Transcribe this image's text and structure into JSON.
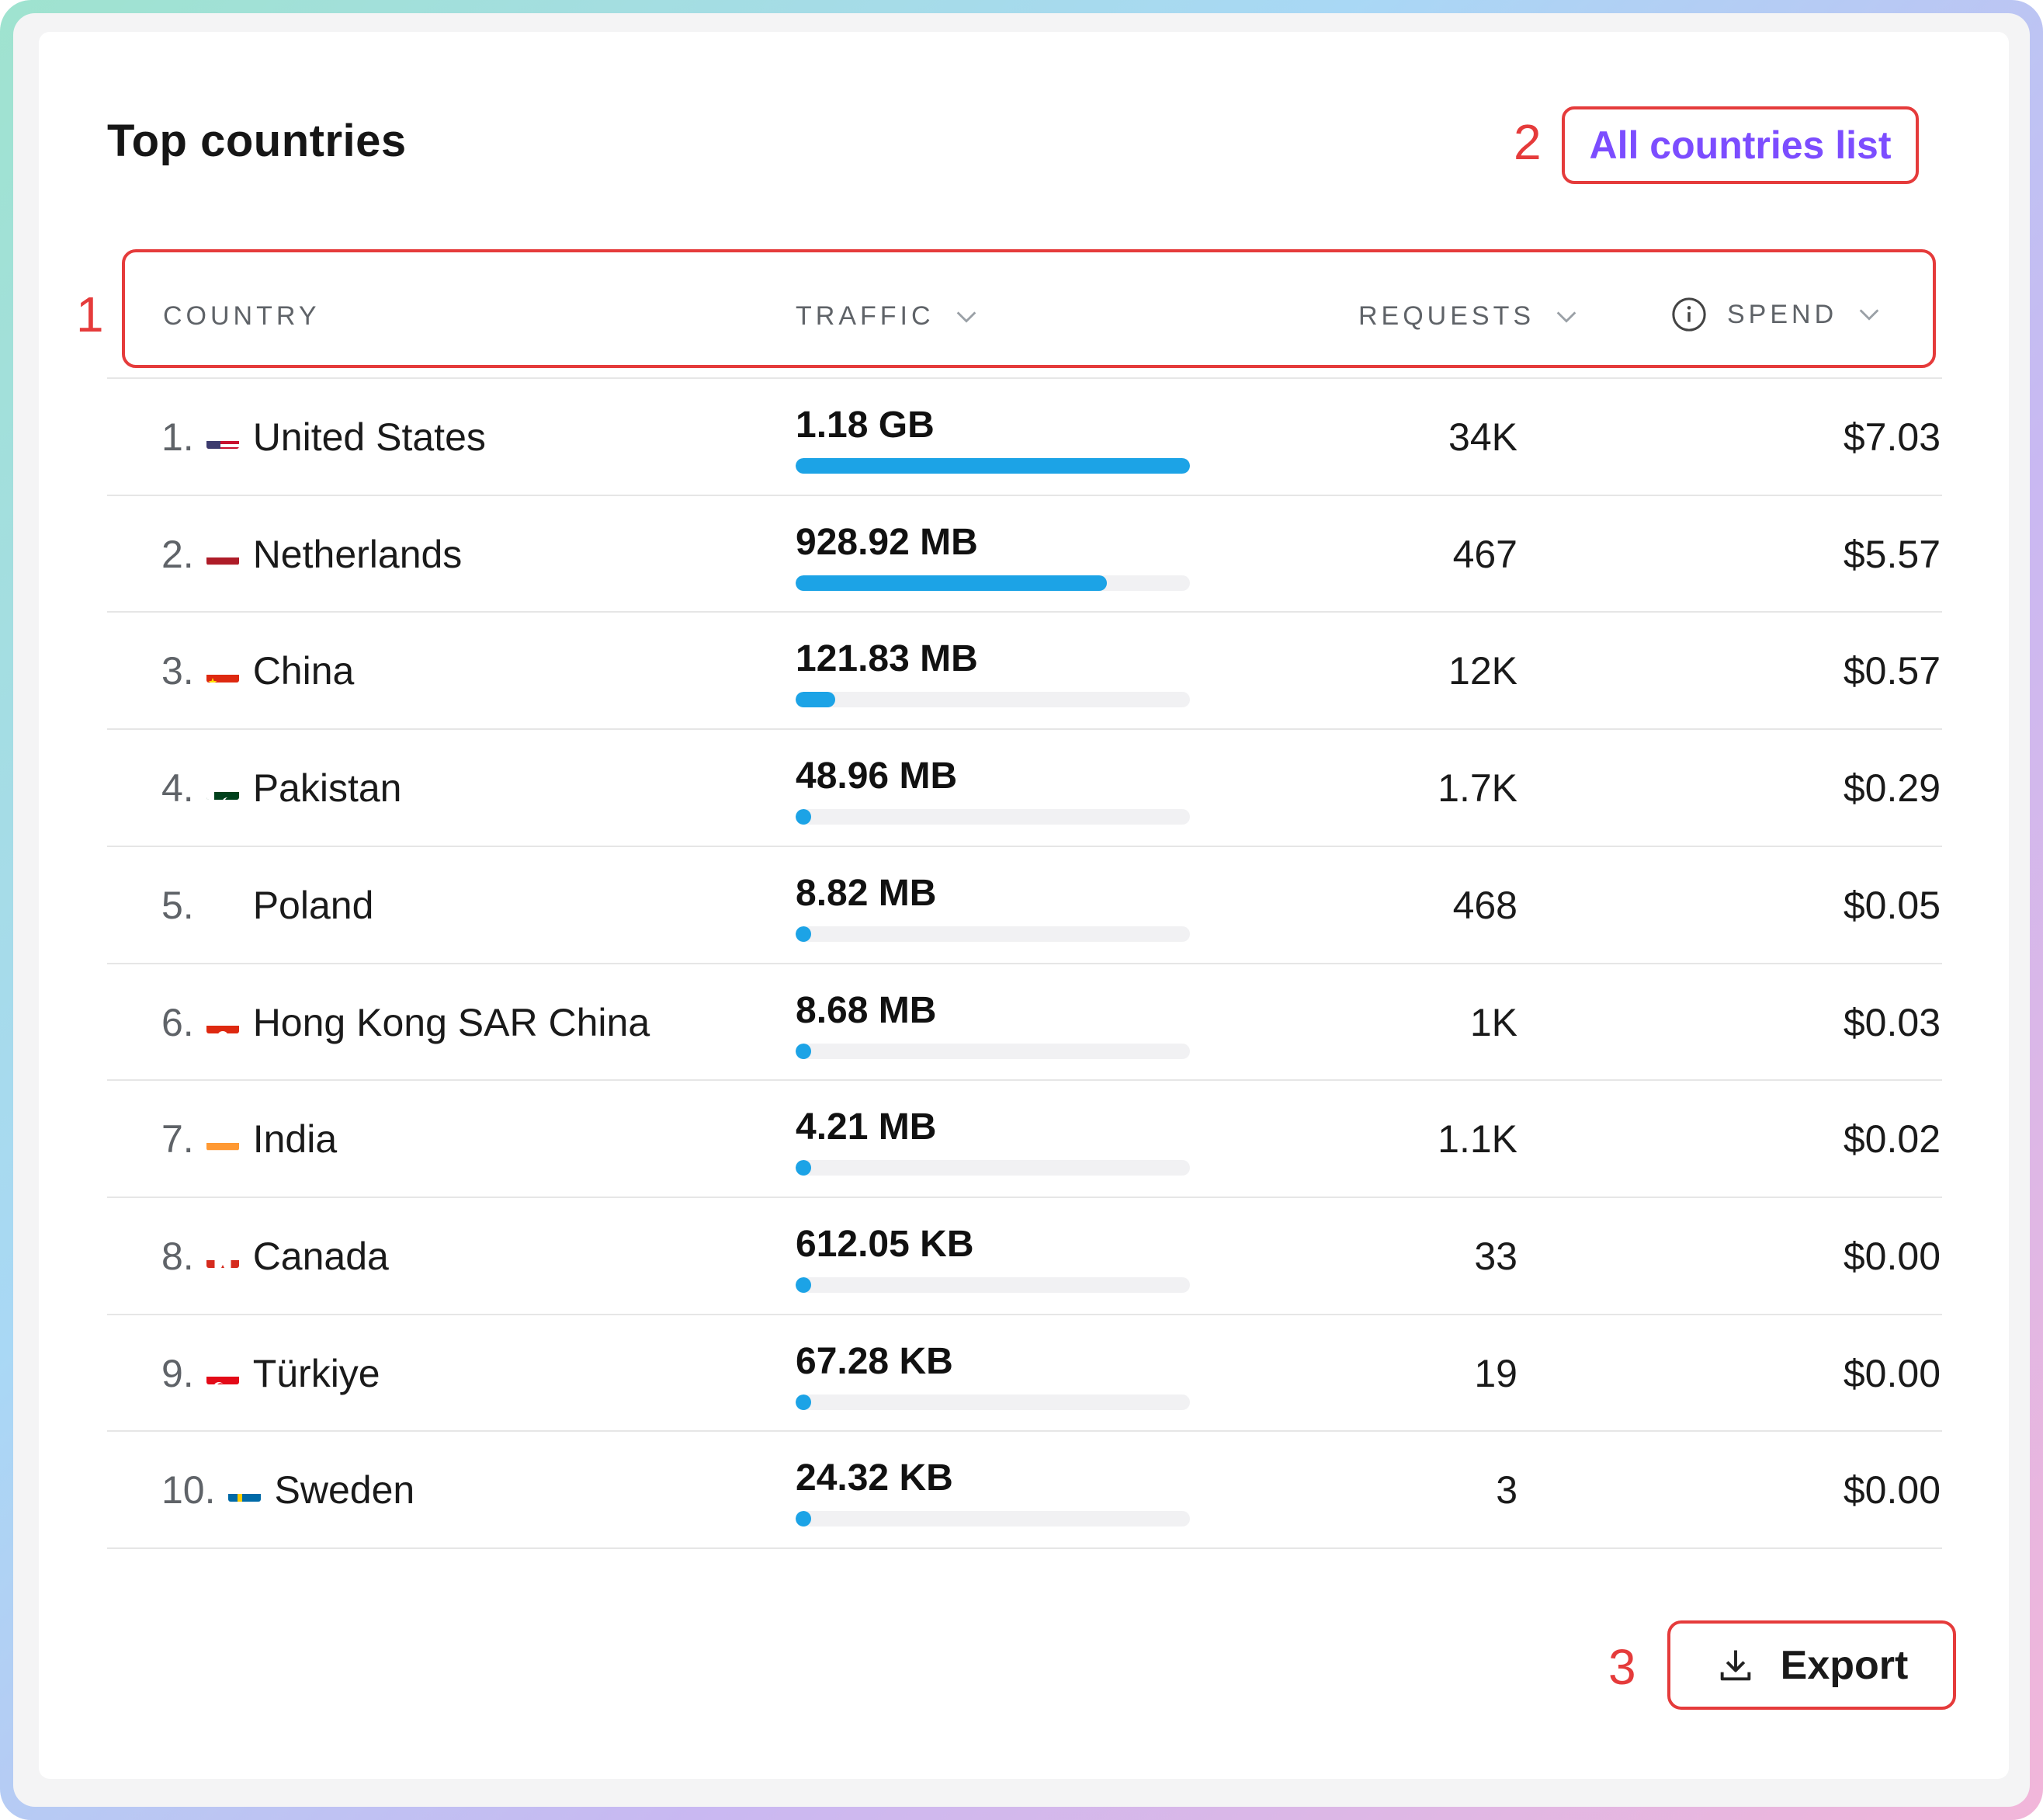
{
  "card": {
    "title": "Top countries",
    "all_countries_label": "All countries list",
    "export_label": "Export"
  },
  "annotations": [
    "1",
    "2",
    "3"
  ],
  "columns": {
    "country": "COUNTRY",
    "traffic": "TRAFFIC",
    "requests": "REQUESTS",
    "spend": "SPEND"
  },
  "rows": [
    {
      "rank": "1.",
      "country": "United States",
      "flag": "flag-us-icon",
      "traffic": "1.18 GB",
      "traffic_fraction": 1.0,
      "requests": "34K",
      "spend": "$7.03"
    },
    {
      "rank": "2.",
      "country": "Netherlands",
      "flag": "flag-nl-icon",
      "traffic": "928.92 MB",
      "traffic_fraction": 0.79,
      "requests": "467",
      "spend": "$5.57"
    },
    {
      "rank": "3.",
      "country": "China",
      "flag": "flag-cn-icon",
      "traffic": "121.83 MB",
      "traffic_fraction": 0.1,
      "requests": "12K",
      "spend": "$0.57"
    },
    {
      "rank": "4.",
      "country": "Pakistan",
      "flag": "flag-pk-icon",
      "traffic": "48.96 MB",
      "traffic_fraction": 0.04,
      "requests": "1.7K",
      "spend": "$0.29"
    },
    {
      "rank": "5.",
      "country": "Poland",
      "flag": "flag-pl-icon",
      "traffic": "8.82 MB",
      "traffic_fraction": 0.01,
      "requests": "468",
      "spend": "$0.05"
    },
    {
      "rank": "6.",
      "country": "Hong Kong SAR China",
      "flag": "flag-hk-icon",
      "traffic": "8.68 MB",
      "traffic_fraction": 0.01,
      "requests": "1K",
      "spend": "$0.03"
    },
    {
      "rank": "7.",
      "country": "India",
      "flag": "flag-in-icon",
      "traffic": "4.21 MB",
      "traffic_fraction": 0.004,
      "requests": "1.1K",
      "spend": "$0.02"
    },
    {
      "rank": "8.",
      "country": "Canada",
      "flag": "flag-ca-icon",
      "traffic": "612.05 KB",
      "traffic_fraction": 0.001,
      "requests": "33",
      "spend": "$0.00"
    },
    {
      "rank": "9.",
      "country": "Türkiye",
      "flag": "flag-tr-icon",
      "traffic": "67.28 KB",
      "traffic_fraction": 0.0001,
      "requests": "19",
      "spend": "$0.00"
    },
    {
      "rank": "10.",
      "country": "Sweden",
      "flag": "flag-se-icon",
      "traffic": "24.32 KB",
      "traffic_fraction": 5e-05,
      "requests": "3",
      "spend": "$0.00"
    }
  ],
  "colors": {
    "bar_fill": "#1ca3e6",
    "annotation_red": "#e53b3b",
    "link_purple": "#7c4dff"
  }
}
